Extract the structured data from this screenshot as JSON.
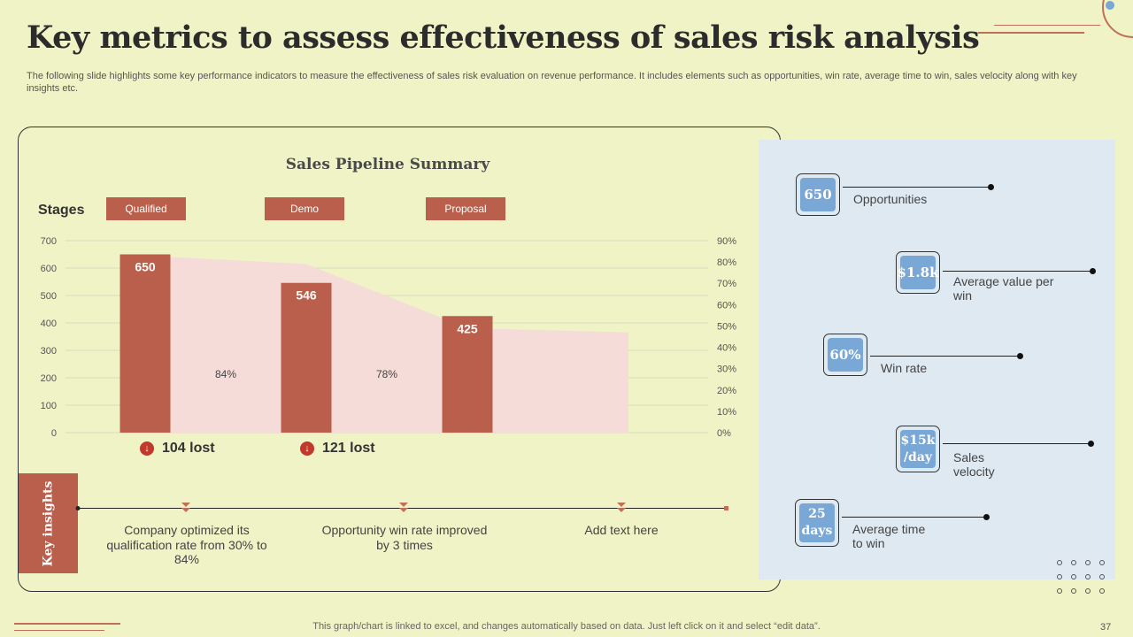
{
  "title": "Key metrics to assess effectiveness of sales risk analysis",
  "subtitle": "The following slide highlights some key performance indicators to measure the effectiveness of sales risk evaluation on revenue performance. It includes elements such as opportunities, win rate, average time to  win, sales velocity along with key  insights etc.",
  "stages_label": "Stages",
  "stages": [
    "Qualified",
    "Demo",
    "Proposal"
  ],
  "lost": [
    "104 lost",
    "121 lost"
  ],
  "lost_icon": "down-arrow-icon",
  "key_insights_label": "Key insights",
  "insights": [
    "Company optimized its qualification rate from 30% to 84%",
    "Opportunity win rate improved by 3 times",
    "Add text here"
  ],
  "metrics": [
    {
      "value": "650",
      "label": "Opportunities"
    },
    {
      "value": "$1.8k",
      "label": "Average value per win"
    },
    {
      "value": "60%",
      "label": "Win rate"
    },
    {
      "value": "$15k /day",
      "label": "Sales velocity"
    },
    {
      "value": "25 days",
      "label": "Average time to win"
    }
  ],
  "footer_note": "This graph/chart is linked to excel,  and changes automatically based on data. Just left click on it and select “edit data”.",
  "page_number": "37",
  "colors": {
    "background": "#eff3c5",
    "bar": "#b95f4b",
    "area": "#f5dcd8",
    "metric_fill": "#79a7d6",
    "panel": "#dfe9f2"
  },
  "chart_data": {
    "type": "bar",
    "title": "Sales Pipeline Summary",
    "categories": [
      "Qualified",
      "Demo",
      "Proposal"
    ],
    "values": [
      650,
      546,
      425
    ],
    "y_ticks": [
      "0",
      "100",
      "200",
      "300",
      "400",
      "500",
      "600",
      "700"
    ],
    "ylim": [
      0,
      700
    ],
    "y2_ticks": [
      "0%",
      "10%",
      "20%",
      "30%",
      "40%",
      "50%",
      "60%",
      "70%",
      "80%",
      "90%"
    ],
    "y2lim": [
      0,
      90
    ],
    "conversion_labels": [
      "84%",
      "78%"
    ],
    "area_series": {
      "x": [
        0.5,
        1.5,
        2.5,
        3.5
      ],
      "values": [
        83,
        79,
        49,
        47
      ]
    },
    "grid": true
  }
}
